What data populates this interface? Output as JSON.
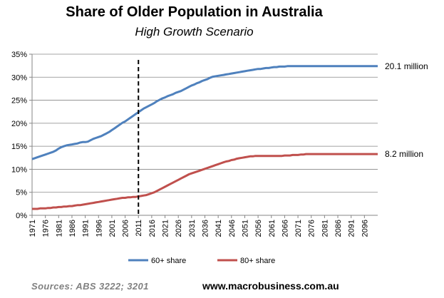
{
  "title": "Share of Older Population in Australia",
  "subtitle": "High Growth Scenario",
  "footer": {
    "sources": "Sources:  ABS  3222;  3201",
    "website": "www.macrobusiness.com.au"
  },
  "chart_data": {
    "type": "line",
    "x": [
      1971,
      1972,
      1973,
      1974,
      1975,
      1976,
      1977,
      1978,
      1979,
      1980,
      1981,
      1982,
      1983,
      1984,
      1985,
      1986,
      1987,
      1988,
      1989,
      1990,
      1991,
      1992,
      1993,
      1994,
      1995,
      1996,
      1997,
      1998,
      1999,
      2000,
      2001,
      2002,
      2003,
      2004,
      2005,
      2006,
      2007,
      2008,
      2009,
      2010,
      2011,
      2012,
      2013,
      2014,
      2015,
      2016,
      2017,
      2018,
      2019,
      2020,
      2021,
      2022,
      2023,
      2024,
      2025,
      2026,
      2027,
      2028,
      2029,
      2030,
      2031,
      2032,
      2033,
      2034,
      2035,
      2036,
      2037,
      2038,
      2039,
      2040,
      2041,
      2042,
      2043,
      2044,
      2045,
      2046,
      2047,
      2048,
      2049,
      2050,
      2051,
      2052,
      2053,
      2054,
      2055,
      2056,
      2057,
      2058,
      2059,
      2060,
      2061,
      2062,
      2063,
      2064,
      2065,
      2066,
      2067,
      2068,
      2069,
      2070,
      2071,
      2072,
      2073,
      2074,
      2075,
      2076,
      2077,
      2078,
      2079,
      2080,
      2081,
      2082,
      2083,
      2084,
      2085,
      2086,
      2087,
      2088,
      2089,
      2090,
      2091,
      2092,
      2093,
      2094,
      2095,
      2096,
      2097,
      2098,
      2099,
      2100,
      2101
    ],
    "series": [
      {
        "name": "60+ share",
        "color": "#4f81bd",
        "values": [
          12.2,
          12.4,
          12.6,
          12.8,
          13.0,
          13.2,
          13.4,
          13.6,
          13.8,
          14.1,
          14.5,
          14.8,
          15.0,
          15.2,
          15.3,
          15.4,
          15.5,
          15.6,
          15.8,
          15.9,
          15.9,
          16.0,
          16.3,
          16.6,
          16.8,
          17.0,
          17.2,
          17.5,
          17.8,
          18.1,
          18.5,
          18.9,
          19.3,
          19.7,
          20.1,
          20.4,
          20.8,
          21.2,
          21.6,
          22.0,
          22.4,
          22.8,
          23.2,
          23.5,
          23.8,
          24.1,
          24.4,
          24.8,
          25.1,
          25.4,
          25.6,
          25.9,
          26.1,
          26.3,
          26.6,
          26.8,
          27.0,
          27.3,
          27.6,
          27.9,
          28.2,
          28.4,
          28.7,
          28.9,
          29.2,
          29.4,
          29.6,
          29.9,
          30.1,
          30.2,
          30.3,
          30.4,
          30.5,
          30.6,
          30.7,
          30.8,
          30.9,
          31.0,
          31.1,
          31.2,
          31.3,
          31.4,
          31.5,
          31.6,
          31.7,
          31.8,
          31.8,
          31.9,
          32.0,
          32.0,
          32.1,
          32.2,
          32.2,
          32.3,
          32.3,
          32.3,
          32.4,
          32.4,
          32.4,
          32.4,
          32.4,
          32.4,
          32.4,
          32.4,
          32.4,
          32.4,
          32.4,
          32.4,
          32.4,
          32.4,
          32.4,
          32.4,
          32.4,
          32.4,
          32.4,
          32.4,
          32.4,
          32.4,
          32.4,
          32.4,
          32.4,
          32.4,
          32.4,
          32.4,
          32.4,
          32.4,
          32.4,
          32.4,
          32.4,
          32.4,
          32.4
        ]
      },
      {
        "name": "80+ share",
        "color": "#c0504d",
        "values": [
          1.4,
          1.4,
          1.4,
          1.5,
          1.5,
          1.5,
          1.6,
          1.6,
          1.7,
          1.7,
          1.8,
          1.8,
          1.9,
          1.9,
          2.0,
          2.0,
          2.1,
          2.2,
          2.2,
          2.3,
          2.4,
          2.5,
          2.6,
          2.7,
          2.8,
          2.9,
          3.0,
          3.1,
          3.2,
          3.3,
          3.4,
          3.5,
          3.6,
          3.7,
          3.8,
          3.8,
          3.9,
          3.9,
          4.0,
          4.0,
          4.1,
          4.2,
          4.3,
          4.4,
          4.6,
          4.8,
          5.0,
          5.3,
          5.6,
          5.9,
          6.2,
          6.5,
          6.8,
          7.1,
          7.4,
          7.7,
          8.0,
          8.3,
          8.6,
          8.9,
          9.1,
          9.3,
          9.5,
          9.7,
          9.9,
          10.1,
          10.3,
          10.5,
          10.7,
          10.9,
          11.1,
          11.3,
          11.5,
          11.7,
          11.8,
          12.0,
          12.1,
          12.3,
          12.4,
          12.5,
          12.6,
          12.7,
          12.8,
          12.8,
          12.9,
          12.9,
          12.9,
          12.9,
          12.9,
          12.9,
          12.9,
          12.9,
          12.9,
          12.9,
          12.9,
          13.0,
          13.0,
          13.0,
          13.1,
          13.1,
          13.1,
          13.2,
          13.2,
          13.3,
          13.3,
          13.3,
          13.3,
          13.3,
          13.3,
          13.3,
          13.3,
          13.3,
          13.3,
          13.3,
          13.3,
          13.3,
          13.3,
          13.3,
          13.3,
          13.3,
          13.3,
          13.3,
          13.3,
          13.3,
          13.3,
          13.3,
          13.3,
          13.3,
          13.3,
          13.3,
          13.3
        ]
      }
    ],
    "x_tick_labels": [
      "1971",
      "1976",
      "1981",
      "1986",
      "1991",
      "1996",
      "2001",
      "2006",
      "2011",
      "2016",
      "2021",
      "2026",
      "2031",
      "2036",
      "2041",
      "2046",
      "2051",
      "2056",
      "2061",
      "2066",
      "2071",
      "2076",
      "2081",
      "2086",
      "2091",
      "2096"
    ],
    "y_tick_labels": [
      "0%",
      "5%",
      "10%",
      "15%",
      "20%",
      "25%",
      "30%",
      "35%"
    ],
    "ylim": [
      0,
      35
    ],
    "y_step": 5,
    "xlim": [
      1971,
      2101
    ],
    "grid": true,
    "marker_line": {
      "x": 2011,
      "style": "dashed"
    },
    "end_labels": [
      "20.1 million",
      "8.2 million"
    ],
    "legend_position": "bottom"
  }
}
